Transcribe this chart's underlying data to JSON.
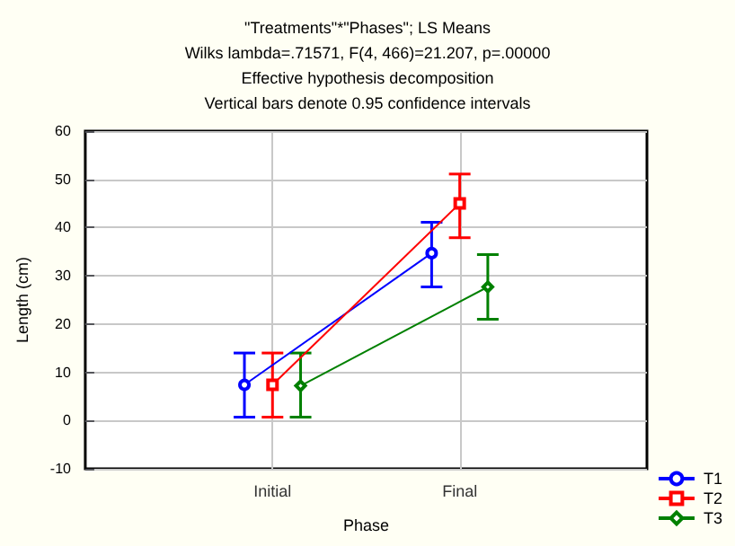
{
  "chart_data": {
    "type": "line",
    "title": "\"Treatments\"*\"Phases\"; LS Means",
    "subtitle": "Wilks lambda=.71571, F(4, 466)=21.207, p=.00000",
    "annotations": [
      "Effective hypothesis decomposition",
      "Vertical bars denote 0.95 confidence intervals"
    ],
    "xlabel": "Phase",
    "ylabel": "Length (cm)",
    "categories": [
      "Initial",
      "Final"
    ],
    "series": [
      {
        "name": "T1",
        "color": "#0000ff",
        "marker": "circle",
        "values": [
          7.4,
          34.7
        ],
        "errors": [
          [
            0.7,
            14
          ],
          [
            27.7,
            41.1
          ]
        ]
      },
      {
        "name": "T2",
        "color": "#ff0000",
        "marker": "square",
        "values": [
          7.4,
          45.0
        ],
        "errors": [
          [
            0.7,
            14
          ],
          [
            37.9,
            51.1
          ]
        ]
      },
      {
        "name": "T3",
        "color": "#008000",
        "marker": "diamond",
        "values": [
          7.2,
          27.7
        ],
        "errors": [
          [
            0.7,
            14
          ],
          [
            21.0,
            34.4
          ]
        ]
      }
    ],
    "ylim": [
      -10,
      60
    ],
    "yticks": [
      -10,
      0,
      10,
      20,
      30,
      40,
      50,
      60
    ],
    "grid": true,
    "legend": "bottom right"
  }
}
